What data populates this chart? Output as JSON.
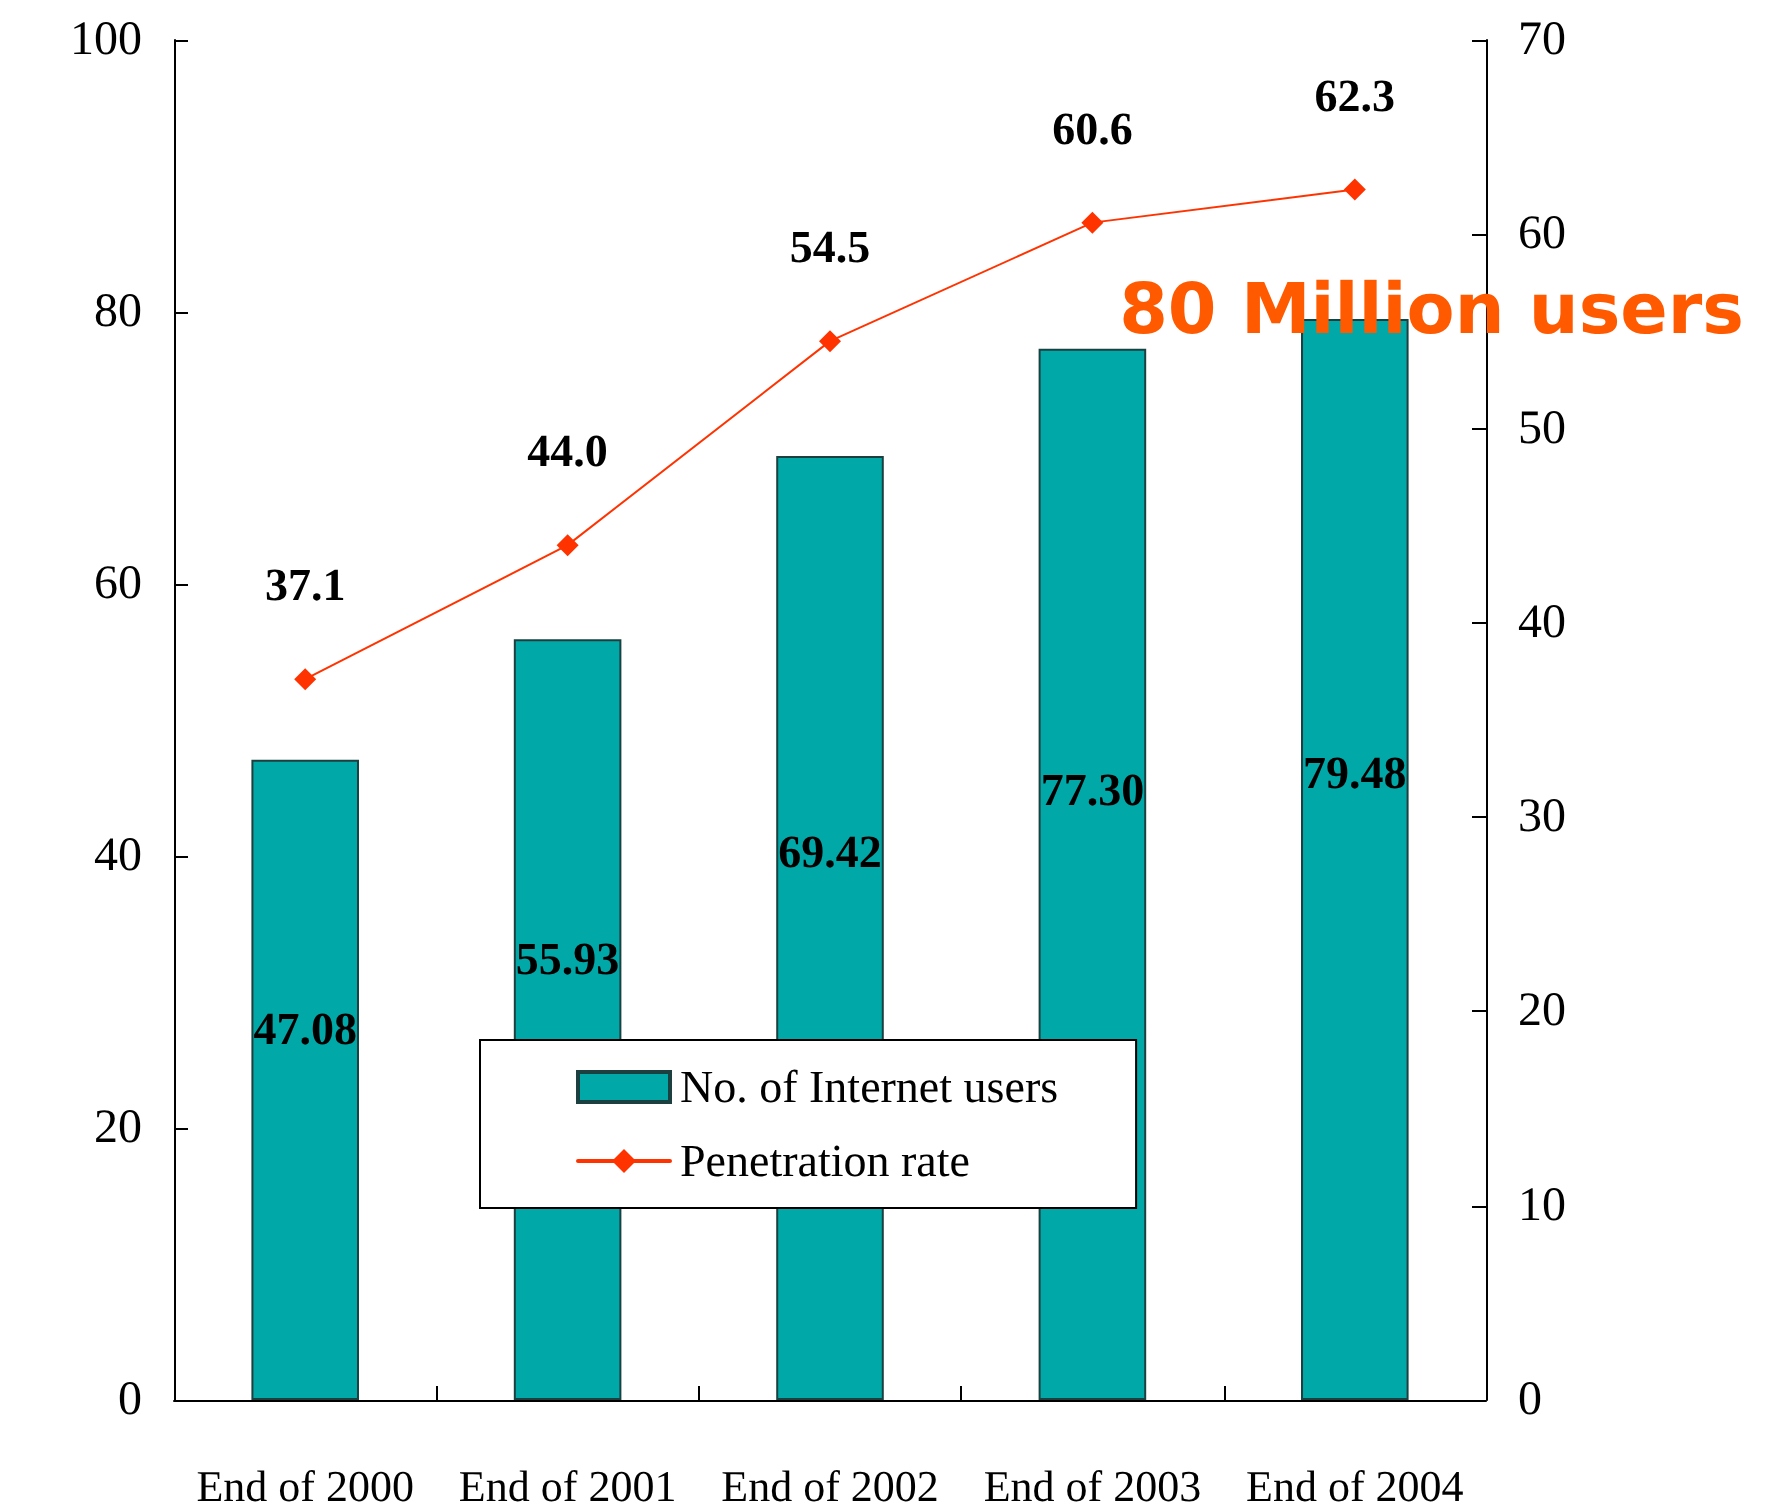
{
  "chart_data": {
    "type": "bar",
    "categories": [
      "End of 2000",
      "End of 2001",
      "End of 2002",
      "End of 2003",
      "End of 2004"
    ],
    "series": [
      {
        "name": "No. of Internet users",
        "color": "#00a8a8",
        "values": [
          47.08,
          55.93,
          69.42,
          77.3,
          79.48
        ],
        "value_labels": [
          "47.08",
          "55.93",
          "69.42",
          "77.30",
          "79.48"
        ]
      },
      {
        "name": "Penetration rate",
        "type": "line",
        "axis": "y2",
        "color": "#ff3300",
        "values": [
          37.1,
          44.0,
          54.5,
          60.6,
          62.3
        ],
        "value_labels": [
          "37.1",
          "44.0",
          "54.5",
          "60.6",
          "62.3"
        ]
      }
    ],
    "ylim": [
      0,
      100
    ],
    "yticks": [
      0,
      20,
      40,
      60,
      80,
      100
    ],
    "y2lim": [
      0,
      70
    ],
    "y2ticks": [
      0,
      10,
      20,
      30,
      40,
      50,
      60,
      70
    ],
    "grid": false,
    "legend": "bottom",
    "marker": "diamond",
    "line_style": "solid",
    "annotations": [
      "80 Million users"
    ]
  }
}
